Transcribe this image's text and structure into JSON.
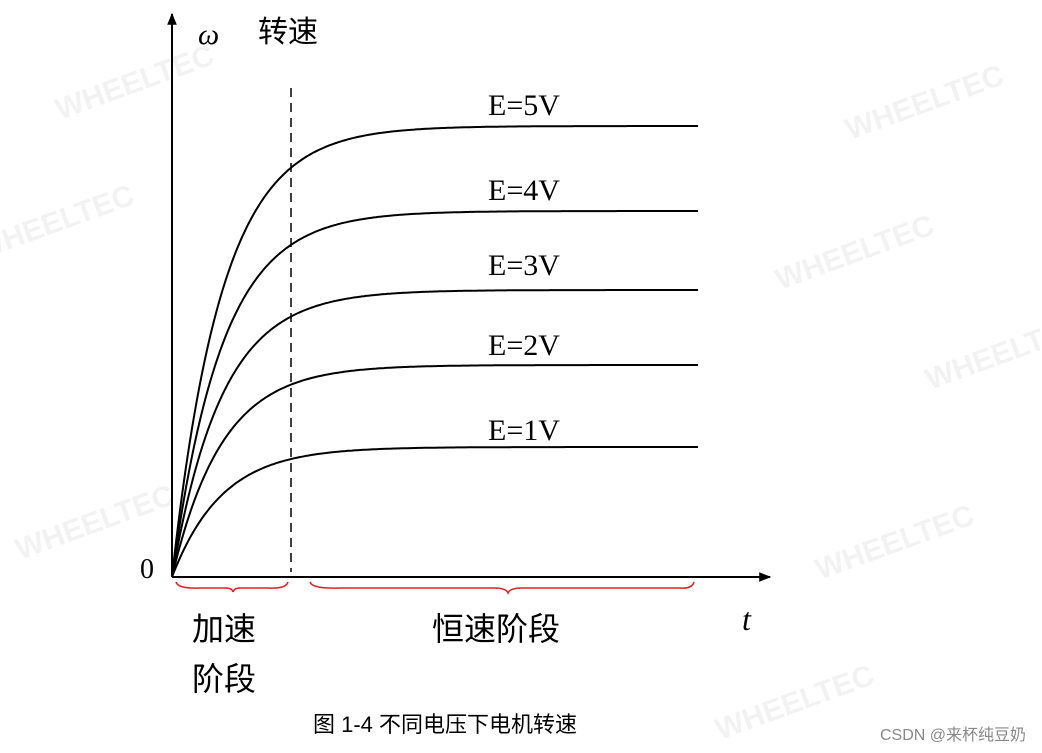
{
  "axis": {
    "y_symbol": "ω",
    "y_label": "转速",
    "origin": "0",
    "x_symbol": "t"
  },
  "curves": [
    {
      "label": "E=5V"
    },
    {
      "label": "E=4V"
    },
    {
      "label": "E=3V"
    },
    {
      "label": "E=2V"
    },
    {
      "label": "E=1V"
    }
  ],
  "phases": [
    {
      "lines": [
        "加速",
        "阶段"
      ]
    },
    {
      "lines": [
        "恒速阶段"
      ]
    }
  ],
  "caption": "图  1-4  不同电压下电机转速",
  "credit": "CSDN @来杯纯豆奶",
  "watermark": "WHEELTEC"
}
